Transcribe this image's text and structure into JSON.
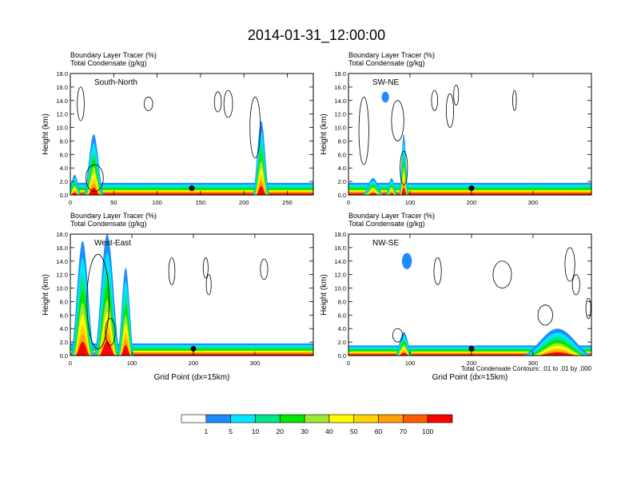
{
  "figure": {
    "title": "2014-01-31_12:00:00",
    "footnote": "Total Condensate Contours: .01 to .01 by .000"
  },
  "chart_data": {
    "type": "heatmap",
    "colorbar": {
      "ticks": [
        "1",
        "5",
        "10",
        "20",
        "30",
        "40",
        "50",
        "60",
        "70",
        "100"
      ],
      "colors": [
        "#ffffff",
        "#1e8cff",
        "#00e6ff",
        "#00e68c",
        "#00e600",
        "#a0e632",
        "#ffff00",
        "#ffd200",
        "#ffa000",
        "#ff5a00",
        "#ff0000"
      ]
    },
    "panels": [
      {
        "label": "South-North",
        "line1": "Boundary Layer Tracer   (%)",
        "line2": "Total Condensate   (g/kg)",
        "ylabel": "Height (km)",
        "xlabel": "",
        "xlim": [
          0,
          280
        ],
        "ylim": [
          0,
          18
        ],
        "xticks": [
          0,
          50,
          100,
          150,
          200,
          250
        ],
        "yticks": [
          "0.0",
          "2.0",
          "4.0",
          "6.0",
          "8.0",
          "10.0",
          "12.0",
          "14.0",
          "16.0",
          "18.0"
        ],
        "marker": {
          "x": 140,
          "y": 1.0
        },
        "plumes": [
          {
            "center": 27,
            "halfwidth": 12,
            "top": 9
          },
          {
            "center": 220,
            "halfwidth": 10,
            "top": 11
          },
          {
            "center": 5,
            "halfwidth": 8,
            "top": 3
          }
        ],
        "base_top": 1.8,
        "cloud_contours": [
          {
            "cx": 12,
            "cy": 13.5,
            "rx": 4,
            "ry": 2.5
          },
          {
            "cx": 90,
            "cy": 13.5,
            "rx": 5,
            "ry": 1
          },
          {
            "cx": 170,
            "cy": 13.8,
            "rx": 4,
            "ry": 1.5
          },
          {
            "cx": 182,
            "cy": 13.5,
            "rx": 5,
            "ry": 2
          },
          {
            "cx": 213,
            "cy": 10,
            "rx": 6,
            "ry": 4.5
          },
          {
            "cx": 28,
            "cy": 2.5,
            "rx": 10,
            "ry": 2
          }
        ]
      },
      {
        "label": "SW-NE",
        "line1": "Boundary Layer Tracer   (%)",
        "line2": "Total Condensate   (g/kg)",
        "ylabel": "Height (km)",
        "xlabel": "",
        "xlim": [
          0,
          395
        ],
        "ylim": [
          0,
          18
        ],
        "xticks": [
          0,
          100,
          200,
          300
        ],
        "yticks": [
          "0.0",
          "2.0",
          "4.0",
          "6.0",
          "8.0",
          "10.0",
          "12.0",
          "14.0",
          "16.0",
          "18.0"
        ],
        "marker": {
          "x": 200,
          "y": 1.0
        },
        "plumes": [
          {
            "center": 90,
            "halfwidth": 8,
            "top": 9
          },
          {
            "center": 40,
            "halfwidth": 18,
            "top": 2.5
          },
          {
            "center": 70,
            "halfwidth": 10,
            "top": 2.5
          }
        ],
        "base_top": 1.8,
        "cloud_contours": [
          {
            "cx": 25,
            "cy": 9.5,
            "rx": 8,
            "ry": 5
          },
          {
            "cx": 80,
            "cy": 11,
            "rx": 10,
            "ry": 3
          },
          {
            "cx": 140,
            "cy": 14,
            "rx": 5,
            "ry": 1.5
          },
          {
            "cx": 165,
            "cy": 12.5,
            "rx": 6,
            "ry": 2.5
          },
          {
            "cx": 175,
            "cy": 14.8,
            "rx": 4,
            "ry": 1.5
          },
          {
            "cx": 270,
            "cy": 14,
            "rx": 3,
            "ry": 1.5
          },
          {
            "cx": 90,
            "cy": 4,
            "rx": 6,
            "ry": 2.5
          }
        ],
        "blue_blobs": [
          {
            "cx": 60,
            "cy": 14.5,
            "rx": 6,
            "ry": 0.8
          }
        ]
      },
      {
        "label": "West-East",
        "line1": "Boundary Layer Tracer   (%)",
        "line2": "Total Condensate   (g/kg)",
        "ylabel": "Height (km)",
        "xlabel": "Grid Point (dx=15km)",
        "xlim": [
          0,
          395
        ],
        "ylim": [
          0,
          18
        ],
        "xticks": [
          0,
          100,
          200,
          300
        ],
        "yticks": [
          "0.0",
          "2.0",
          "4.0",
          "6.0",
          "8.0",
          "10.0",
          "12.0",
          "14.0",
          "16.0",
          "18.0"
        ],
        "marker": {
          "x": 200,
          "y": 1.0
        },
        "plumes": [
          {
            "center": 60,
            "halfwidth": 22,
            "top": 18
          },
          {
            "center": 20,
            "halfwidth": 20,
            "top": 17
          },
          {
            "center": 90,
            "halfwidth": 14,
            "top": 13
          }
        ],
        "base_top": 1.8,
        "cloud_contours": [
          {
            "cx": 45,
            "cy": 8,
            "rx": 18,
            "ry": 7
          },
          {
            "cx": 165,
            "cy": 12.5,
            "rx": 5,
            "ry": 2
          },
          {
            "cx": 220,
            "cy": 13,
            "rx": 4,
            "ry": 1.5
          },
          {
            "cx": 225,
            "cy": 10.5,
            "rx": 4,
            "ry": 1.5
          },
          {
            "cx": 315,
            "cy": 12.8,
            "rx": 6,
            "ry": 1.5
          },
          {
            "cx": 65,
            "cy": 3.5,
            "rx": 8,
            "ry": 2
          }
        ]
      },
      {
        "label": "NW-SE",
        "line1": "Boundary Layer Tracer   (%)",
        "line2": "Total Condensate   (g/kg)",
        "ylabel": "Height (km)",
        "xlabel": "Grid Point (dx=15km)",
        "xlim": [
          0,
          395
        ],
        "ylim": [
          0,
          18
        ],
        "xticks": [
          0,
          100,
          200,
          300
        ],
        "yticks": [
          "0.0",
          "2.0",
          "4.0",
          "6.0",
          "8.0",
          "10.0",
          "12.0",
          "14.0",
          "16.0",
          "18.0"
        ],
        "marker": {
          "x": 200,
          "y": 1.0
        },
        "plumes": [
          {
            "center": 340,
            "halfwidth": 60,
            "top": 4
          },
          {
            "center": 90,
            "halfwidth": 15,
            "top": 3.5
          }
        ],
        "base_top": 1.5,
        "cloud_contours": [
          {
            "cx": 145,
            "cy": 12.5,
            "rx": 6,
            "ry": 2
          },
          {
            "cx": 250,
            "cy": 12,
            "rx": 15,
            "ry": 2
          },
          {
            "cx": 360,
            "cy": 13.5,
            "rx": 8,
            "ry": 2.5
          },
          {
            "cx": 370,
            "cy": 10.5,
            "rx": 6,
            "ry": 1.5
          },
          {
            "cx": 390,
            "cy": 7,
            "rx": 4,
            "ry": 1.5
          },
          {
            "cx": 320,
            "cy": 6,
            "rx": 12,
            "ry": 1.5
          },
          {
            "cx": 80,
            "cy": 3,
            "rx": 8,
            "ry": 1
          }
        ],
        "blue_blobs": [
          {
            "cx": 95,
            "cy": 14,
            "rx": 8,
            "ry": 1.2
          }
        ]
      }
    ]
  }
}
